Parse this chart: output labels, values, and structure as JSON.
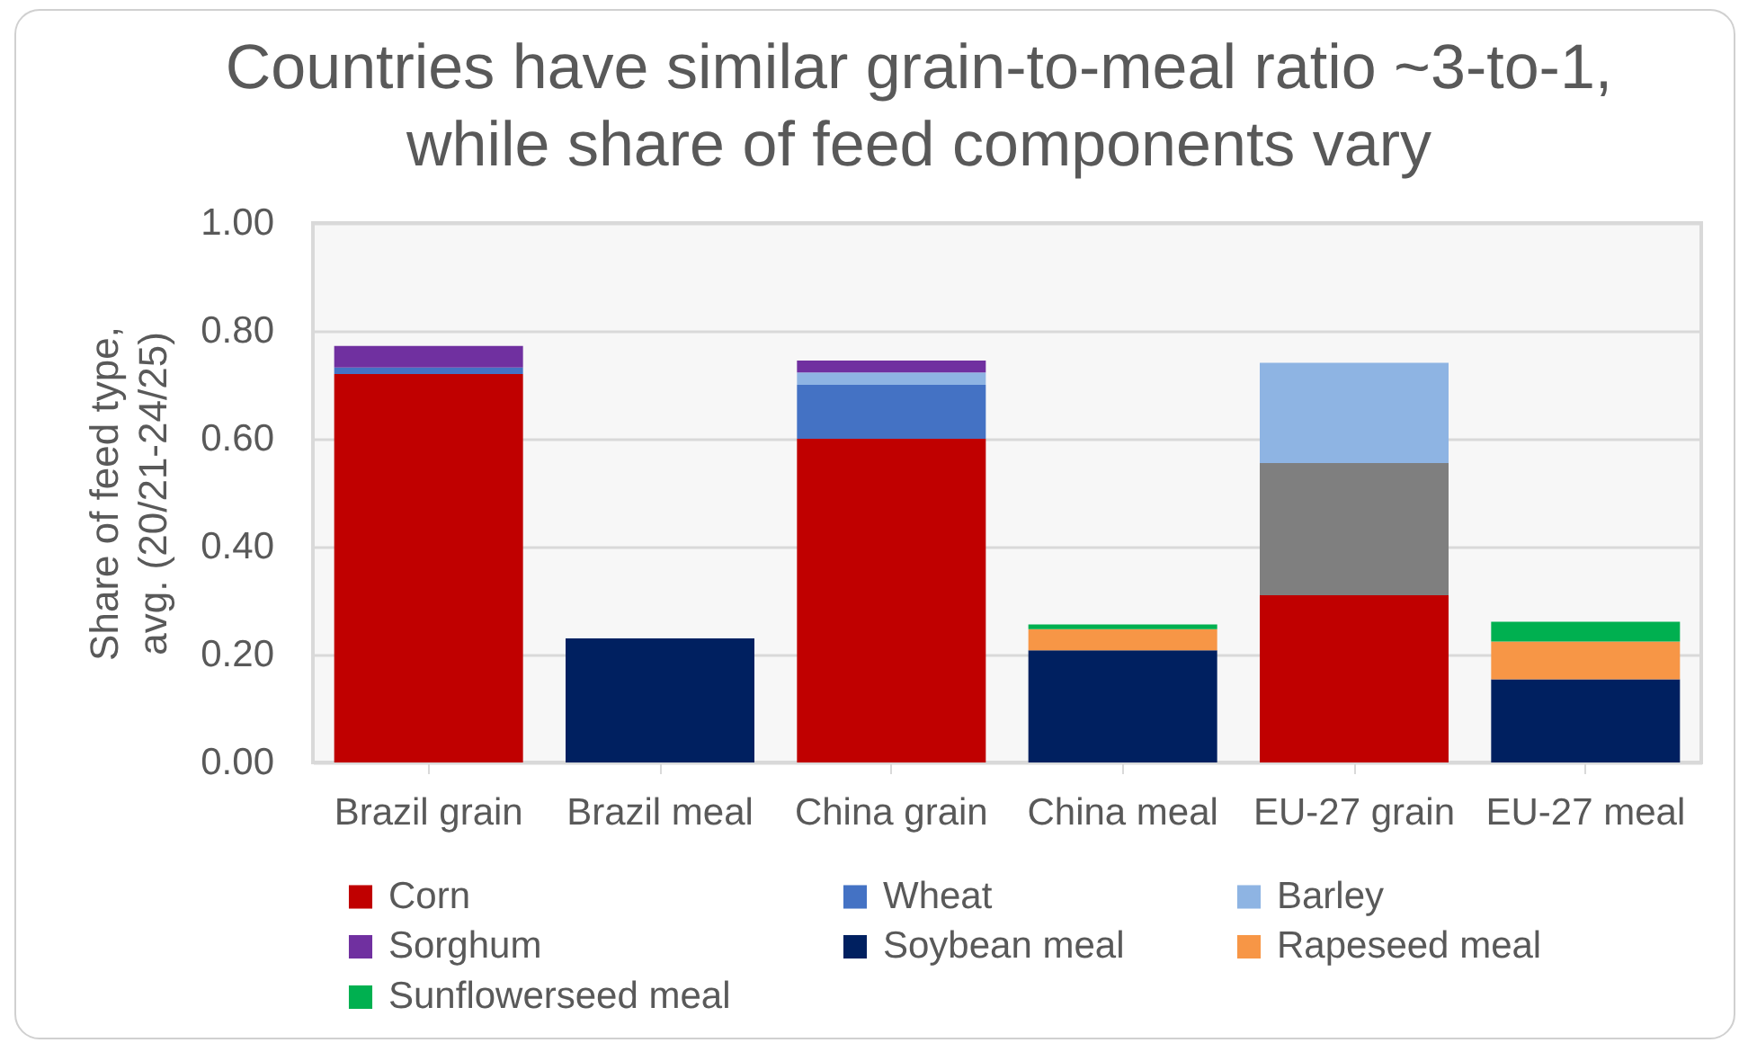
{
  "chart_data": {
    "type": "bar",
    "title": "Countries have similar grain-to-meal ratio ~3-to-1, while share of feed components vary",
    "ylabel": "Share of feed type, avg. (20/21-24/25)",
    "categories": [
      "Brazil grain",
      "Brazil meal",
      "China grain",
      "China meal",
      "EU-27 grain",
      "EU-27 meal"
    ],
    "stacked": true,
    "series": [
      {
        "name": "Corn",
        "color": "#c00000",
        "values": [
          0.72,
          null,
          0.6,
          null,
          0.31,
          null
        ]
      },
      {
        "name": "Wheat",
        "color": "#4472c4",
        "colors": [
          "#4472c4",
          null,
          "#4472c4",
          null,
          "#7f7f7f",
          null
        ],
        "values": [
          0.012,
          null,
          0.1,
          null,
          0.245,
          null
        ]
      },
      {
        "name": "Barley",
        "color": "#8eb4e3",
        "values": [
          null,
          null,
          0.023,
          null,
          0.186,
          null
        ]
      },
      {
        "name": "Sorghum",
        "color": "#7030a0",
        "values": [
          0.04,
          null,
          0.022,
          null,
          null,
          null
        ]
      },
      {
        "name": "Soybean meal",
        "color": "#002060",
        "values": [
          null,
          0.23,
          null,
          0.208,
          null,
          0.154
        ]
      },
      {
        "name": "Rapeseed meal",
        "color": "#f79646",
        "values": [
          null,
          null,
          null,
          0.039,
          null,
          0.07
        ]
      },
      {
        "name": "Sunflowerseed meal",
        "color": "#00b050",
        "values": [
          null,
          null,
          null,
          0.009,
          null,
          0.037
        ]
      }
    ],
    "ylim": [
      0,
      1
    ],
    "yticks": [
      {
        "value": 0,
        "label": "0.00"
      },
      {
        "value": 0.2,
        "label": "0.20"
      },
      {
        "value": 0.4,
        "label": "0.40"
      },
      {
        "value": 0.6,
        "label": "0.60"
      },
      {
        "value": 0.8,
        "label": "0.80"
      },
      {
        "value": 1,
        "label": "1.00"
      }
    ],
    "grid": "y",
    "legend": "bottom"
  }
}
